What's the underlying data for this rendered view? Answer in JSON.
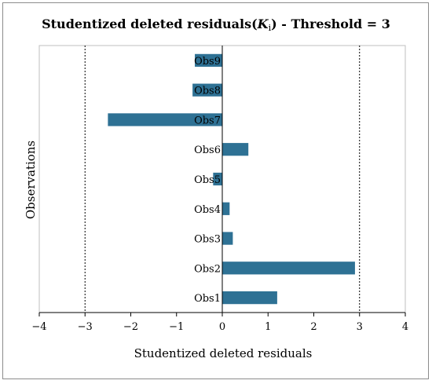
{
  "chart_data": {
    "type": "bar",
    "orientation": "horizontal",
    "title_main": "Studentized deleted residuals(",
    "title_symbol": "K",
    "title_subscript": "i",
    "title_rest": ") - Threshold = 3",
    "xlabel": "Studentized deleted residuals",
    "ylabel": "Observations",
    "categories": [
      "Obs1",
      "Obs2",
      "Obs3",
      "Obs4",
      "Obs5",
      "Obs6",
      "Obs7",
      "Obs8",
      "Obs9"
    ],
    "values": [
      1.2,
      2.9,
      0.23,
      0.16,
      -0.2,
      0.57,
      -2.5,
      -0.65,
      -0.6
    ],
    "xlim": [
      -4,
      4
    ],
    "xticks": [
      "−4",
      "−3",
      "−2",
      "−1",
      "0",
      "1",
      "2",
      "3",
      "4"
    ],
    "threshold": 3,
    "threshold_lines": [
      -3,
      3
    ],
    "bar_color": "#2e7194",
    "grid": false
  }
}
